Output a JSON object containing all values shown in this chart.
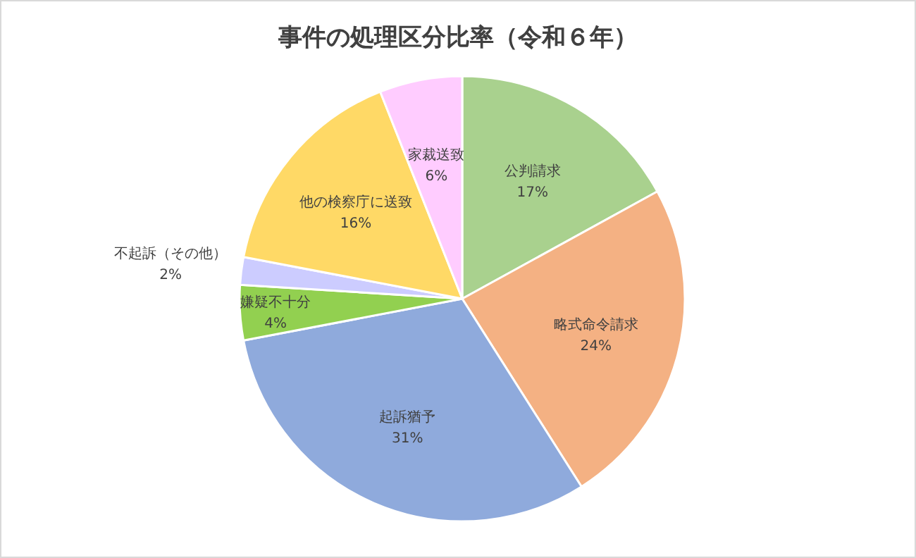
{
  "chart_data": {
    "type": "pie",
    "title": "事件の処理区分比率（令和６年）",
    "categories": [
      "公判請求",
      "略式命令請求",
      "起訴猶予",
      "嫌疑不十分",
      "不起訴（その他）",
      "他の検察庁に送致",
      "家裁送致"
    ],
    "values": [
      17,
      24,
      31,
      4,
      2,
      16,
      6
    ],
    "colors": [
      "#a9d18e",
      "#f4b183",
      "#8faadc",
      "#92d050",
      "#ccccff",
      "#ffd966",
      "#ffccff"
    ],
    "value_labels": [
      "17%",
      "24%",
      "31%",
      "4%",
      "2%",
      "16%",
      "6%"
    ],
    "legend": false
  }
}
